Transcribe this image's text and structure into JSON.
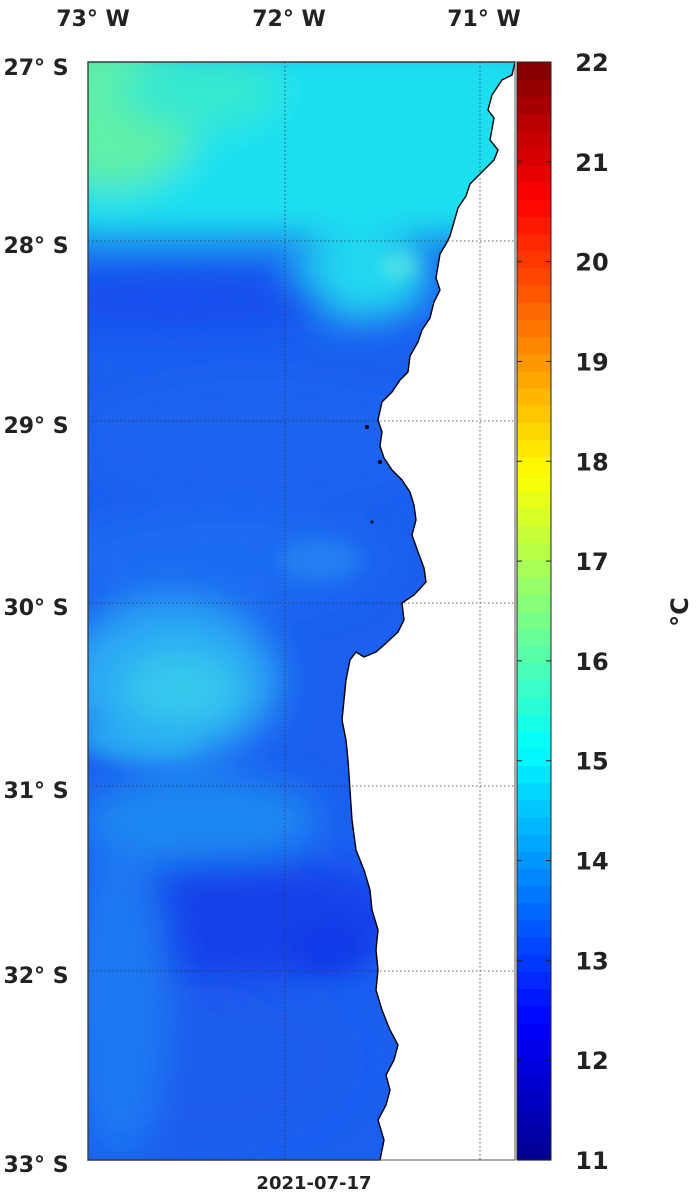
{
  "map": {
    "date": "2021-07-17",
    "unit": "°C",
    "lon_labels": [
      "73° W",
      "72° W",
      "71° W"
    ],
    "lat_labels": [
      "27° S",
      "28° S",
      "29° S",
      "30° S",
      "31° S",
      "32° S",
      "33° S"
    ],
    "lon_range": [
      -73.0,
      -70.8
    ],
    "lat_range": [
      -33.0,
      -27.0
    ],
    "grid": "dotted"
  },
  "colorbar": {
    "ticks": [
      "22",
      "21",
      "20",
      "19",
      "18",
      "17",
      "16",
      "15",
      "14",
      "13",
      "12",
      "11"
    ],
    "range": [
      11,
      22
    ],
    "colormap": "jet",
    "colors": [
      "#00008f",
      "#0000ff",
      "#007fff",
      "#00ffff",
      "#7fff7f",
      "#ffff00",
      "#ff7f00",
      "#ff0000",
      "#7f0000"
    ]
  },
  "sst_regions": {
    "northwest_warm": 16.5,
    "north_band": 15.2,
    "mid_shelf": 13.4,
    "central_patch": 14.8,
    "south": 12.8
  }
}
